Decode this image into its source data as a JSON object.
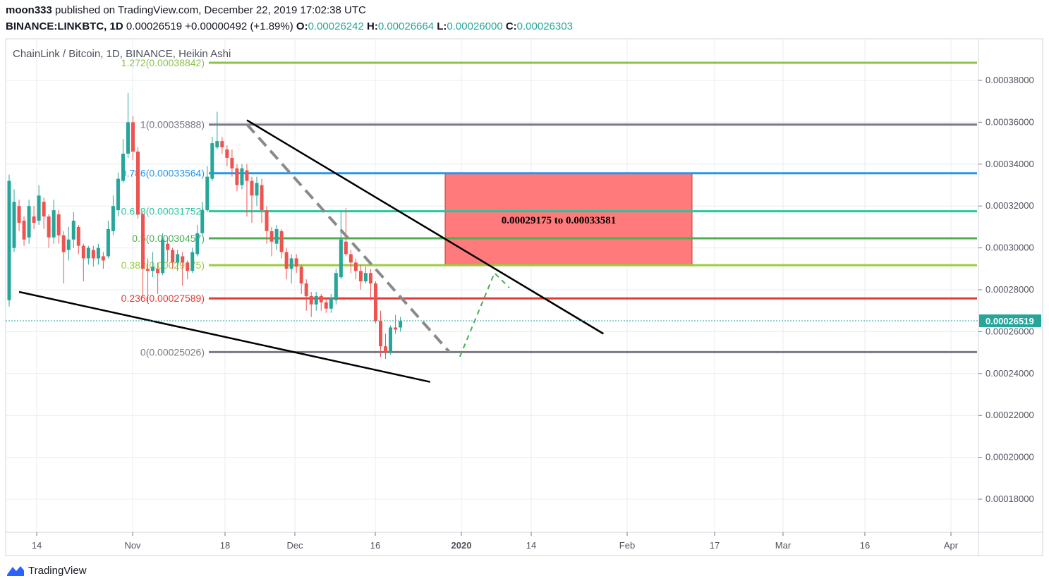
{
  "header": {
    "author": "moon333",
    "published_text": "published on TradingView.com, December 22, 2019 17:02:38 UTC",
    "symbol": "BINANCE:LINKBTC, 1D",
    "last": "0.00026519",
    "change": "+0.00000492 (+1.89%)",
    "o_label": "O:",
    "o": "0.00026242",
    "h_label": "H:",
    "h": "0.00026664",
    "l_label": "L:",
    "l": "0.00026000",
    "c_label": "C:",
    "c": "0.00026303"
  },
  "footer": {
    "brand": "TradingView"
  },
  "colors": {
    "up": "#26a69a",
    "down": "#ef5350",
    "grid": "#e9ecf0",
    "zone": "#ff7a7a"
  },
  "chart_data": {
    "type": "candlestick",
    "title": "ChainLink / Bitcoin, 1D, BINANCE, Heikin Ashi",
    "y_ticks": [
      "0.00038000",
      "0.00036000",
      "0.00034000",
      "0.00032000",
      "0.00030000",
      "0.00028000",
      "0.00026000",
      "0.00024000",
      "0.00022000",
      "0.00020000",
      "0.00018000"
    ],
    "x_ticks": [
      "14",
      "Nov",
      "18",
      "Dec",
      "16",
      "2020",
      "14",
      "Feb",
      "17",
      "Mar",
      "16",
      "Apr"
    ],
    "last_price_label": "0.00026519",
    "fib_levels": [
      {
        "label": "1.272(0.00038842)",
        "value": 0.00038842,
        "color": "#8bc34a"
      },
      {
        "label": "1(0.00035888)",
        "value": 0.00035888,
        "color": "#787b86"
      },
      {
        "label": "0.786(0.00033564)",
        "value": 0.00033564,
        "color": "#2196f3"
      },
      {
        "label": "0.618(0.00031752)",
        "value": 0.00031752,
        "color": "#26c6a0"
      },
      {
        "label": "0.5(0.00030457)",
        "value": 0.00030457,
        "color": "#4caf50"
      },
      {
        "label": "0.382(0.00029175)",
        "value": 0.00029175,
        "color": "#9ccc3c"
      },
      {
        "label": "0.236(0.00027589)",
        "value": 0.00027589,
        "color": "#e53935"
      },
      {
        "label": "0(0.00025026)",
        "value": 0.00025026,
        "color": "#787b86"
      }
    ],
    "target_zone": {
      "label": "0.00029175 to 0.00033581",
      "low": 0.00029175,
      "high": 0.00033581
    },
    "candles": [
      [
        27500,
        33200,
        33500,
        27200
      ],
      [
        30000,
        32200,
        32800,
        29800
      ],
      [
        32000,
        31200,
        32300,
        30800
      ],
      [
        31300,
        30400,
        31500,
        30100
      ],
      [
        30500,
        32000,
        32300,
        30200
      ],
      [
        31500,
        31200,
        32000,
        30900
      ],
      [
        31300,
        32500,
        33000,
        31100
      ],
      [
        32200,
        31500,
        32400,
        30900
      ],
      [
        31500,
        30500,
        31600,
        30000
      ],
      [
        30500,
        31800,
        32300,
        30200
      ],
      [
        31600,
        30600,
        31800,
        30200
      ],
      [
        30600,
        29800,
        30800,
        28300
      ],
      [
        29900,
        30400,
        31000,
        29400
      ],
      [
        30400,
        31300,
        31700,
        30000
      ],
      [
        31000,
        30100,
        31100,
        29700
      ],
      [
        30100,
        29500,
        30200,
        28400
      ],
      [
        29500,
        30000,
        30100,
        29200
      ],
      [
        29900,
        29500,
        30100,
        29100
      ],
      [
        29500,
        30000,
        30200,
        29200
      ],
      [
        29600,
        29400,
        29800,
        29000
      ],
      [
        29600,
        30900,
        31300,
        29500
      ],
      [
        30800,
        32000,
        32500,
        30600
      ],
      [
        31800,
        33300,
        33600,
        31500
      ],
      [
        33200,
        34500,
        35200,
        33100
      ],
      [
        34500,
        36000,
        37400,
        34300
      ],
      [
        36000,
        34600,
        36300,
        34200
      ],
      [
        34600,
        31600,
        34800,
        31400
      ],
      [
        31600,
        29000,
        31700,
        27600
      ],
      [
        29000,
        28900,
        29500,
        27400
      ],
      [
        28900,
        29100,
        29800,
        28600
      ],
      [
        29000,
        28800,
        29300,
        27800
      ],
      [
        28800,
        30400,
        30700,
        28700
      ],
      [
        30200,
        29900,
        30500,
        29300
      ],
      [
        29900,
        29300,
        30000,
        29000
      ],
      [
        29300,
        29700,
        29900,
        28900
      ],
      [
        29600,
        29300,
        29800,
        28200
      ],
      [
        29300,
        28900,
        29400,
        28500
      ],
      [
        28900,
        29800,
        30000,
        28800
      ],
      [
        29700,
        30700,
        31100,
        29600
      ],
      [
        30700,
        31800,
        32200,
        30600
      ],
      [
        31800,
        33400,
        33900,
        31700
      ],
      [
        33300,
        35000,
        35300,
        33200
      ],
      [
        34800,
        35100,
        36500,
        34700
      ],
      [
        35100,
        34800,
        35300,
        34500
      ],
      [
        34700,
        34300,
        34900,
        33900
      ],
      [
        34300,
        33800,
        34700,
        33400
      ],
      [
        33800,
        33000,
        34000,
        32700
      ],
      [
        33000,
        33800,
        34000,
        32800
      ],
      [
        33700,
        33200,
        34000,
        31500
      ],
      [
        33200,
        32500,
        33400,
        31200
      ],
      [
        32500,
        33100,
        33400,
        32000
      ],
      [
        33000,
        31800,
        33300,
        31200
      ],
      [
        31800,
        30800,
        32000,
        30200
      ],
      [
        30800,
        30300,
        31000,
        29600
      ],
      [
        30200,
        30900,
        31100,
        29900
      ],
      [
        30800,
        29800,
        30900,
        29500
      ],
      [
        29800,
        29000,
        30000,
        28500
      ],
      [
        29000,
        29500,
        29700,
        28300
      ],
      [
        29500,
        29100,
        29700,
        28800
      ],
      [
        29100,
        28300,
        29200,
        27800
      ],
      [
        28300,
        27700,
        28500,
        27000
      ],
      [
        27700,
        27300,
        27900,
        26700
      ],
      [
        27300,
        27700,
        27900,
        27000
      ],
      [
        27700,
        27400,
        27800,
        27000
      ],
      [
        27400,
        27100,
        27600,
        26900
      ],
      [
        27100,
        27600,
        27800,
        26900
      ],
      [
        27500,
        28800,
        29000,
        27300
      ],
      [
        28600,
        30400,
        31700,
        28500
      ],
      [
        30300,
        29700,
        31900,
        29600
      ],
      [
        29700,
        29300,
        29900,
        28800
      ],
      [
        29300,
        28900,
        29500,
        28500
      ],
      [
        28900,
        28400,
        29200,
        28000
      ],
      [
        28400,
        28800,
        29100,
        28300
      ],
      [
        28800,
        28300,
        29000,
        27500
      ],
      [
        28300,
        26500,
        28400,
        26400
      ],
      [
        26500,
        25300,
        27000,
        24800
      ],
      [
        25300,
        25000,
        25900,
        24700
      ],
      [
        25000,
        26200,
        26300,
        24900
      ],
      [
        26200,
        26100,
        26800,
        25900
      ],
      [
        26200,
        26500,
        26700,
        26000
      ]
    ],
    "annotations": [
      {
        "type": "trendline",
        "from": [
          2,
          0.000279
        ],
        "to": [
          85,
          0.000236
        ]
      },
      {
        "type": "trendline",
        "from": [
          48,
          0.000361
        ],
        "to": [
          120,
          0.000259
        ]
      },
      {
        "type": "projection",
        "style": "dashed-gray",
        "from": [
          48,
          0.000359
        ],
        "to": [
          89,
          0.00025
        ]
      },
      {
        "type": "projection",
        "style": "dashed-green",
        "points": [
          [
            91,
            0.000248
          ],
          [
            98,
            0.000288
          ],
          [
            101,
            0.000281
          ]
        ]
      }
    ]
  }
}
